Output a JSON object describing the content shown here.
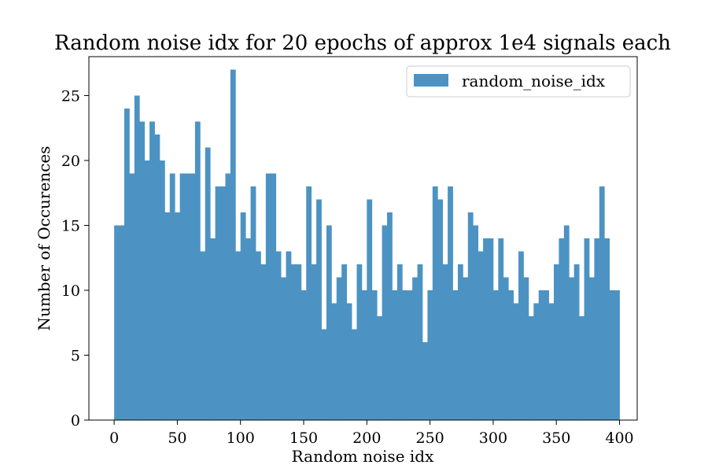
{
  "chart_data": {
    "type": "bar",
    "title": "Random noise idx for 20 epochs of approx 1e4 signals each",
    "xlabel": "Random noise idx",
    "ylabel": "Number of Occurences",
    "xlim": [
      -20,
      414
    ],
    "ylim": [
      0,
      28
    ],
    "bin_start": 0,
    "bin_width": 4,
    "xticks": [
      0,
      50,
      100,
      150,
      200,
      250,
      300,
      350,
      400
    ],
    "yticks": [
      0,
      5,
      10,
      15,
      20,
      25
    ],
    "legend": {
      "position": "upper right",
      "entries": [
        "random_noise_idx"
      ]
    },
    "series": [
      {
        "name": "random_noise_idx",
        "color": "#4c93c3",
        "values": [
          15,
          15,
          24,
          19,
          25,
          23,
          20,
          23,
          22,
          20,
          16,
          19,
          16,
          19,
          19,
          19,
          23,
          13,
          21,
          14,
          18,
          18,
          19,
          27,
          13,
          16,
          14,
          18,
          13,
          12,
          19,
          19,
          13,
          11,
          13,
          12,
          12,
          10,
          18,
          12,
          17,
          7,
          15,
          9,
          11,
          12,
          9,
          7,
          12,
          10,
          17,
          10,
          8,
          15,
          16,
          10,
          12,
          10,
          10,
          11,
          12,
          6,
          10,
          18,
          17,
          12,
          18,
          10,
          12,
          11,
          16,
          15,
          13,
          14,
          14,
          10,
          14,
          11,
          10,
          9,
          13,
          11,
          8,
          9,
          10,
          10,
          9,
          12,
          14,
          15,
          11,
          12,
          8,
          14,
          11,
          14,
          18,
          14,
          10,
          10
        ]
      }
    ]
  }
}
